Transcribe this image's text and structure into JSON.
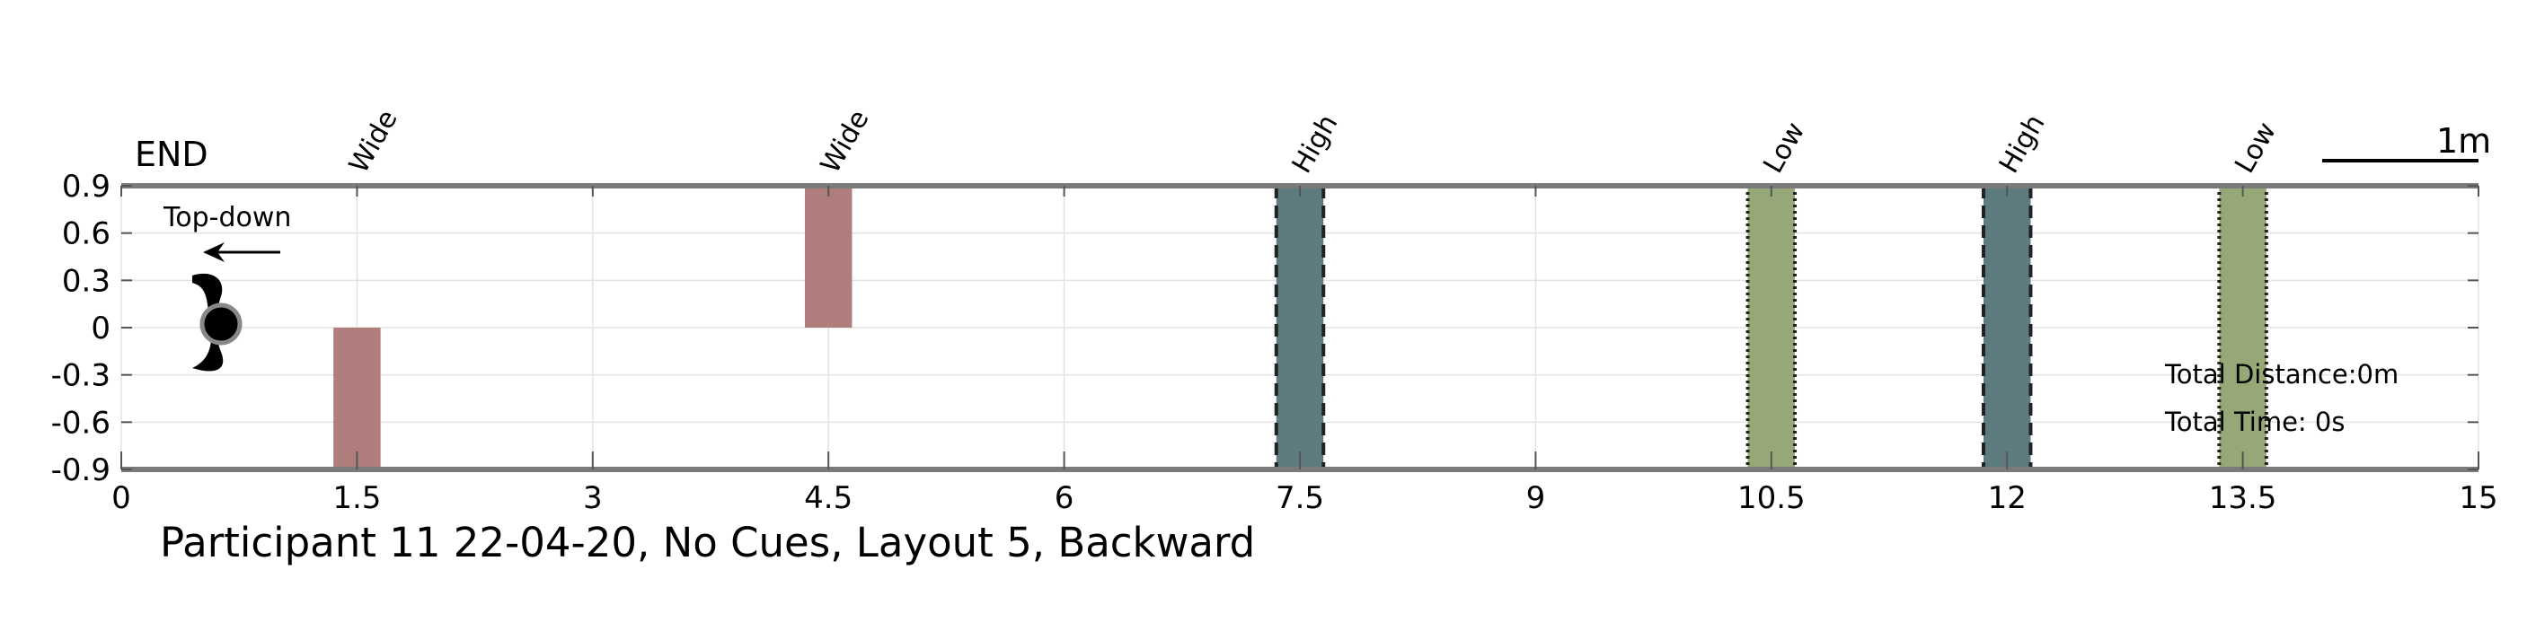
{
  "chart_data": {
    "type": "bar",
    "title": "Participant 11 22-04-20, No Cues, Layout 5, Backward",
    "xlim": [
      0,
      15
    ],
    "ylim": [
      -0.9,
      0.9
    ],
    "xticks": [
      "0",
      "1.5",
      "3",
      "4.5",
      "6",
      "7.5",
      "9",
      "10.5",
      "12",
      "13.5",
      "15"
    ],
    "xtick_values": [
      0,
      1.5,
      3,
      4.5,
      6,
      7.5,
      9,
      10.5,
      12,
      13.5,
      15
    ],
    "yticks": [
      "0.9",
      "0.6",
      "0.3",
      "0",
      "-0.3",
      "-0.6",
      "-0.9"
    ],
    "ytick_values": [
      0.9,
      0.6,
      0.3,
      0,
      -0.3,
      -0.6,
      -0.9
    ],
    "grid": true,
    "obstacles": [
      {
        "label": "Wide",
        "x": 1.5,
        "width": 0.3,
        "y0": -0.9,
        "y1": 0,
        "color": "#b07d7d",
        "border": "none"
      },
      {
        "label": "Wide",
        "x": 4.5,
        "width": 0.3,
        "y0": 0,
        "y1": 0.9,
        "color": "#b07d7d",
        "border": "none"
      },
      {
        "label": "High",
        "x": 7.5,
        "width": 0.3,
        "y0": -0.9,
        "y1": 0.9,
        "color": "#5e7b80",
        "border": "dashed"
      },
      {
        "label": "Low",
        "x": 10.5,
        "width": 0.3,
        "y0": -0.9,
        "y1": 0.9,
        "color": "#97a878",
        "border": "dotted"
      },
      {
        "label": "High",
        "x": 12,
        "width": 0.3,
        "y0": -0.9,
        "y1": 0.9,
        "color": "#5e7b80",
        "border": "dashed"
      },
      {
        "label": "Low",
        "x": 13.5,
        "width": 0.3,
        "y0": -0.9,
        "y1": 0.9,
        "color": "#97a878",
        "border": "dotted"
      }
    ],
    "annotations": {
      "end": "END",
      "view": "Top-down",
      "scale": "1m",
      "total_distance": "Total Distance:0m",
      "total_time": "Total Time: 0s"
    }
  }
}
